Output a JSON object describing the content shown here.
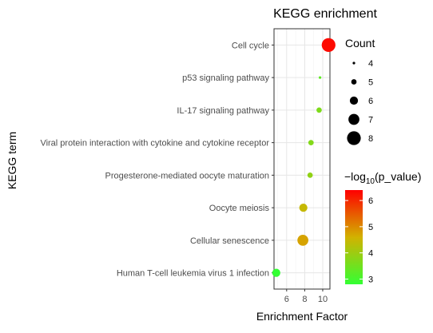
{
  "chart_data": {
    "type": "scatter",
    "title": "KEGG enrichment",
    "xlabel": "Enrichment Factor",
    "ylabel": "KEGG term",
    "xlim": [
      4.6,
      10.8
    ],
    "xticks": [
      6,
      8,
      10
    ],
    "grid": true,
    "categories": [
      "Human T-cell leukemia virus 1 infection",
      "Cellular senescence",
      "Oocyte meiosis",
      "Progesterone-mediated oocyte maturation",
      "Viral protein interaction with cytokine and cytokine receptor",
      "IL-17 signaling pathway",
      "p53 signaling pathway",
      "Cell cycle"
    ],
    "points": [
      {
        "term": "Human T-cell leukemia virus 1 infection",
        "x": 4.85,
        "count": 6,
        "neg_log10_p": 2.8
      },
      {
        "term": "Cellular senescence",
        "x": 7.8,
        "count": 7,
        "neg_log10_p": 4.75
      },
      {
        "term": "Oocyte meiosis",
        "x": 7.85,
        "count": 6,
        "neg_log10_p": 4.45
      },
      {
        "term": "Progesterone-mediated oocyte maturation",
        "x": 8.6,
        "count": 5,
        "neg_log10_p": 3.85
      },
      {
        "term": "Viral protein interaction with cytokine and cytokine receptor",
        "x": 8.7,
        "count": 5,
        "neg_log10_p": 3.7
      },
      {
        "term": "IL-17 signaling pathway",
        "x": 9.6,
        "count": 5,
        "neg_log10_p": 3.65
      },
      {
        "term": "p53 signaling pathway",
        "x": 9.7,
        "count": 4,
        "neg_log10_p": 3.3
      },
      {
        "term": "Cell cycle",
        "x": 10.65,
        "count": 8,
        "neg_log10_p": 6.3
      }
    ],
    "size_legend": {
      "title": "Count",
      "values": [
        4,
        5,
        6,
        7,
        8
      ]
    },
    "color_legend": {
      "title_prefix": "−log",
      "title_sub": "10",
      "title_suffix": "(p_value)",
      "range": [
        2.8,
        6.4
      ],
      "ticks": [
        3,
        4,
        5,
        6
      ],
      "colors": [
        "#33ff33",
        "#d2b200",
        "#ff0000"
      ]
    }
  }
}
